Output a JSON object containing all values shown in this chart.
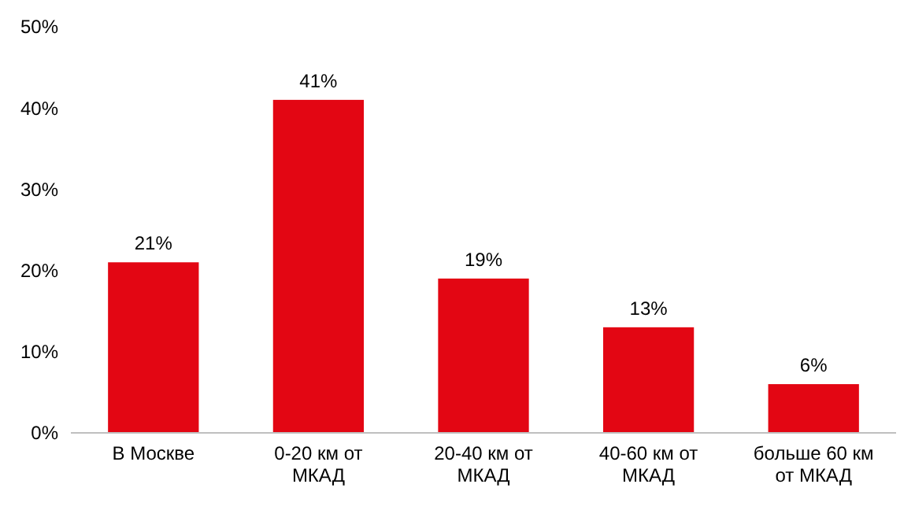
{
  "chart_data": {
    "type": "bar",
    "categories": [
      "В Москве",
      "0-20 км от МКАД",
      "20-40 км от МКАД",
      "40-60 км от МКАД",
      "больше 60 км от МКАД"
    ],
    "values": [
      21,
      41,
      19,
      13,
      6
    ],
    "value_labels": [
      "21%",
      "41%",
      "19%",
      "13%",
      "6%"
    ],
    "color": "#e30613",
    "ylim": [
      0,
      50
    ],
    "yticks": [
      {
        "value": 0,
        "label": "0%"
      },
      {
        "value": 10,
        "label": "10%"
      },
      {
        "value": 20,
        "label": "20%"
      },
      {
        "value": 30,
        "label": "30%"
      },
      {
        "value": 40,
        "label": "40%"
      },
      {
        "value": 50,
        "label": "50%"
      }
    ],
    "grid": false
  }
}
